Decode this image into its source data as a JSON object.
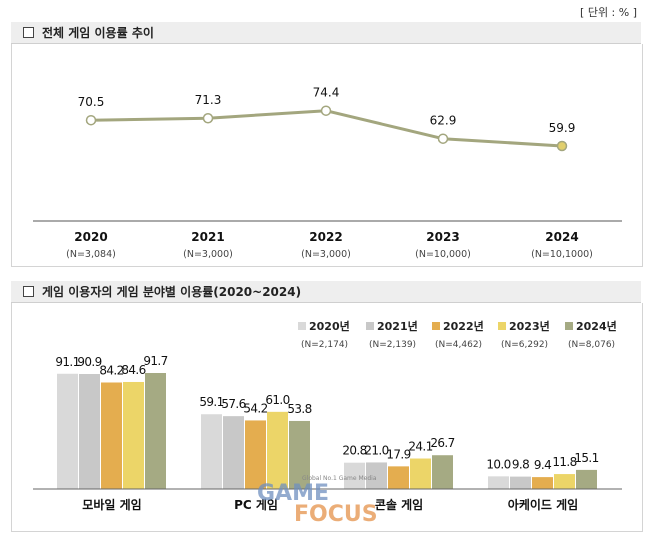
{
  "unit_label": "[ 단위 : % ]",
  "sections": {
    "line_title": "전체 게임 이용률 추이",
    "bar_title": "게임 이용자의 게임 분야별 이용률(2020~2024)"
  },
  "watermark": {
    "sub": "Global No.1 Game Media",
    "line1": "GAME",
    "line2": "FOCUS"
  },
  "colors": {
    "line": "#a3a67e",
    "marker_last": "#e1cf6d",
    "series": [
      "#d9d9d9",
      "#c8c8c8",
      "#e4ad4f",
      "#ecd568",
      "#a5aa83"
    ]
  },
  "chart_data": [
    {
      "type": "line",
      "title": "전체 게임 이용률 추이",
      "categories": [
        "2020",
        "2021",
        "2022",
        "2023",
        "2024"
      ],
      "sublabels": [
        "(N=3,084)",
        "(N=3,000)",
        "(N=3,000)",
        "(N=10,000)",
        "(N=10,1000)"
      ],
      "values": [
        70.5,
        71.3,
        74.4,
        62.9,
        59.9
      ],
      "value_labels": [
        "70.5",
        "71.3",
        "74.4",
        "62.9",
        "59.9"
      ],
      "unit": "%"
    },
    {
      "type": "bar",
      "title": "게임 이용자의 게임 분야별 이용률(2020~2024)",
      "categories": [
        "모바일 게임",
        "PC 게임",
        "콘솔 게임",
        "아케이드 게임"
      ],
      "ylim": [
        0,
        100
      ],
      "series": [
        {
          "name": "2020년",
          "sublabel": "(N=2,174)",
          "values": [
            91.1,
            59.1,
            20.8,
            10.0
          ],
          "labels": [
            "91.1",
            "59.1",
            "20.8",
            "10.0"
          ]
        },
        {
          "name": "2021년",
          "sublabel": "(N=2,139)",
          "values": [
            90.9,
            57.6,
            21.0,
            9.8
          ],
          "labels": [
            "90.9",
            "57.6",
            "21.0",
            "9.8"
          ]
        },
        {
          "name": "2022년",
          "sublabel": "(N=4,462)",
          "values": [
            84.2,
            54.2,
            17.9,
            9.4
          ],
          "labels": [
            "84.2",
            "54.2",
            "17.9",
            "9.4"
          ]
        },
        {
          "name": "2023년",
          "sublabel": "(N=6,292)",
          "values": [
            84.6,
            61.0,
            24.1,
            11.8
          ],
          "labels": [
            "84.6",
            "61.0",
            "24.1",
            "11.8"
          ]
        },
        {
          "name": "2024년",
          "sublabel": "(N=8,076)",
          "values": [
            91.7,
            53.8,
            26.7,
            15.1
          ],
          "labels": [
            "91.7",
            "53.8",
            "26.7",
            "15.1"
          ]
        }
      ]
    }
  ]
}
